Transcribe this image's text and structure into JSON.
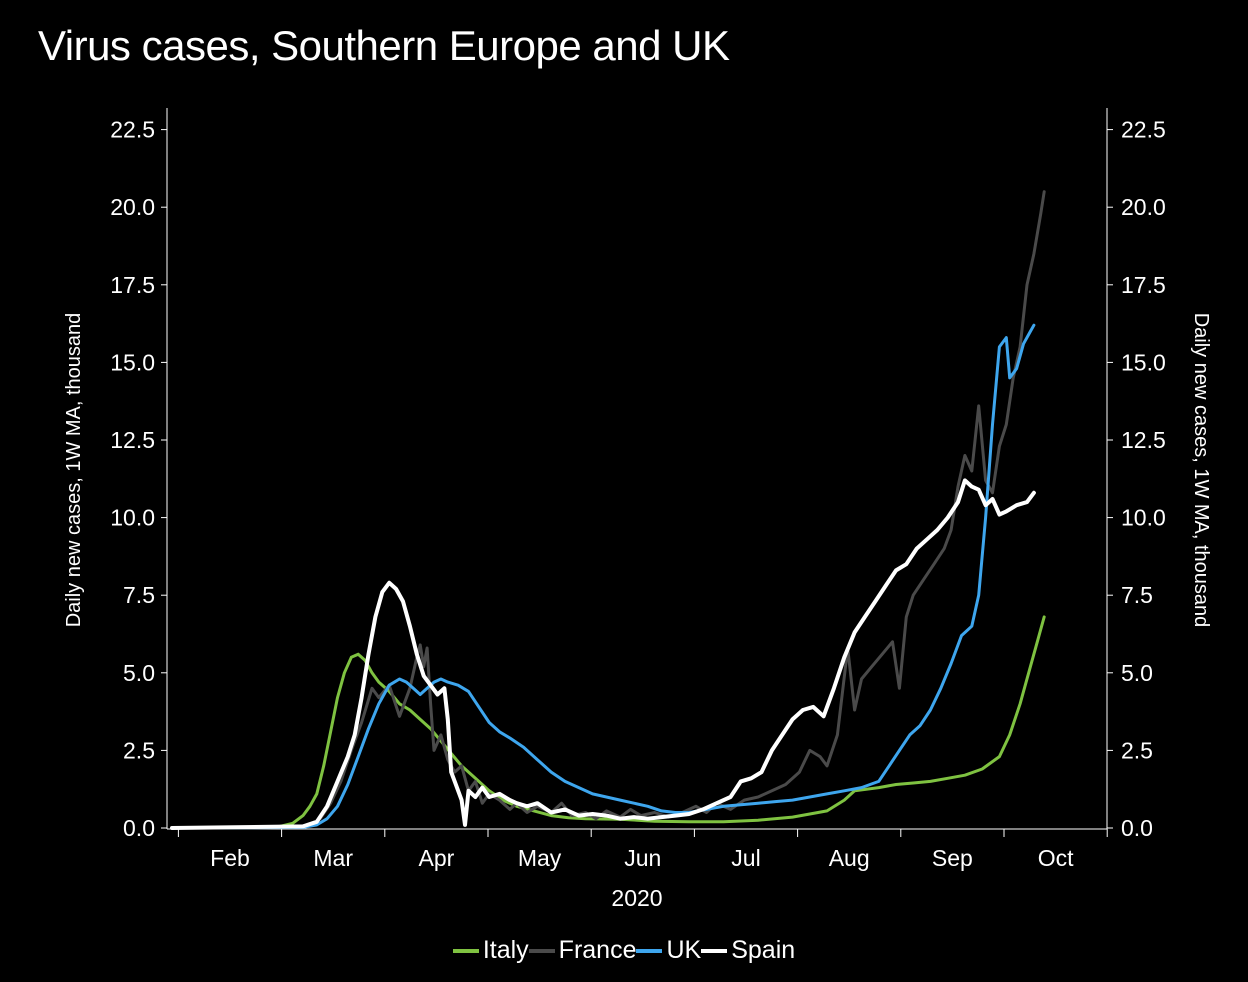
{
  "title": "Virus cases, Southern Europe and UK",
  "chart_data": {
    "type": "line",
    "title": "Virus cases, Southern Europe and UK",
    "xlabel": "2020",
    "ylabel_left": "Daily new cases, 1W MA, thousand",
    "ylabel_right": "Daily new cases, 1W MA, thousand",
    "x_ticks": [
      "Feb",
      "Mar",
      "Apr",
      "May",
      "Jun",
      "Jul",
      "Aug",
      "Sep",
      "Oct"
    ],
    "y_ticks": [
      "0.0",
      "2.5",
      "5.0",
      "7.5",
      "10.0",
      "12.5",
      "15.0",
      "17.5",
      "20.0",
      "22.5"
    ],
    "ylim": [
      0,
      22.5
    ],
    "x_unit": "days since 2020-01-20",
    "xlim": [
      0,
      257
    ],
    "legend_position": "bottom",
    "grid": false,
    "series": [
      {
        "name": "Italy",
        "color": "#7fc241",
        "points": [
          [
            0,
            0
          ],
          [
            30,
            0.02
          ],
          [
            35,
            0.15
          ],
          [
            38,
            0.4
          ],
          [
            40,
            0.7
          ],
          [
            42,
            1.1
          ],
          [
            44,
            2.0
          ],
          [
            46,
            3.1
          ],
          [
            48,
            4.2
          ],
          [
            50,
            5.0
          ],
          [
            52,
            5.5
          ],
          [
            54,
            5.6
          ],
          [
            56,
            5.4
          ],
          [
            58,
            5.0
          ],
          [
            60,
            4.7
          ],
          [
            63,
            4.4
          ],
          [
            66,
            4.0
          ],
          [
            69,
            3.8
          ],
          [
            72,
            3.5
          ],
          [
            75,
            3.2
          ],
          [
            78,
            2.8
          ],
          [
            81,
            2.4
          ],
          [
            84,
            2.0
          ],
          [
            88,
            1.6
          ],
          [
            92,
            1.2
          ],
          [
            96,
            0.9
          ],
          [
            100,
            0.7
          ],
          [
            105,
            0.55
          ],
          [
            110,
            0.4
          ],
          [
            115,
            0.33
          ],
          [
            120,
            0.3
          ],
          [
            130,
            0.28
          ],
          [
            140,
            0.22
          ],
          [
            150,
            0.2
          ],
          [
            160,
            0.2
          ],
          [
            170,
            0.25
          ],
          [
            180,
            0.35
          ],
          [
            185,
            0.45
          ],
          [
            190,
            0.55
          ],
          [
            195,
            0.9
          ],
          [
            198,
            1.2
          ],
          [
            205,
            1.3
          ],
          [
            210,
            1.4
          ],
          [
            215,
            1.45
          ],
          [
            220,
            1.5
          ],
          [
            225,
            1.6
          ],
          [
            230,
            1.7
          ],
          [
            235,
            1.9
          ],
          [
            240,
            2.3
          ],
          [
            243,
            3.0
          ],
          [
            246,
            4.0
          ],
          [
            249,
            5.2
          ],
          [
            251,
            6.0
          ],
          [
            253,
            6.8
          ]
        ]
      },
      {
        "name": "France",
        "color": "#4a4a4a",
        "points": [
          [
            0,
            0
          ],
          [
            35,
            0.02
          ],
          [
            40,
            0.1
          ],
          [
            43,
            0.3
          ],
          [
            46,
            0.8
          ],
          [
            49,
            1.5
          ],
          [
            52,
            2.5
          ],
          [
            55,
            3.4
          ],
          [
            58,
            4.5
          ],
          [
            60,
            4.2
          ],
          [
            63,
            4.6
          ],
          [
            66,
            3.6
          ],
          [
            69,
            4.5
          ],
          [
            71,
            5.5
          ],
          [
            72,
            5.9
          ],
          [
            73,
            5.2
          ],
          [
            74,
            5.8
          ],
          [
            75,
            4.0
          ],
          [
            76,
            2.5
          ],
          [
            78,
            3.0
          ],
          [
            80,
            2.2
          ],
          [
            82,
            1.8
          ],
          [
            84,
            2.0
          ],
          [
            86,
            1.2
          ],
          [
            88,
            1.5
          ],
          [
            90,
            0.8
          ],
          [
            92,
            1.1
          ],
          [
            95,
            0.9
          ],
          [
            98,
            0.6
          ],
          [
            100,
            0.8
          ],
          [
            103,
            0.5
          ],
          [
            106,
            0.7
          ],
          [
            110,
            0.5
          ],
          [
            113,
            0.8
          ],
          [
            116,
            0.4
          ],
          [
            120,
            0.5
          ],
          [
            123,
            0.3
          ],
          [
            126,
            0.55
          ],
          [
            130,
            0.35
          ],
          [
            133,
            0.6
          ],
          [
            136,
            0.4
          ],
          [
            140,
            0.5
          ],
          [
            144,
            0.35
          ],
          [
            148,
            0.5
          ],
          [
            152,
            0.7
          ],
          [
            155,
            0.5
          ],
          [
            158,
            0.8
          ],
          [
            162,
            0.6
          ],
          [
            166,
            0.9
          ],
          [
            170,
            1.0
          ],
          [
            174,
            1.2
          ],
          [
            178,
            1.4
          ],
          [
            182,
            1.8
          ],
          [
            185,
            2.5
          ],
          [
            188,
            2.3
          ],
          [
            190,
            2.0
          ],
          [
            193,
            3.0
          ],
          [
            196,
            5.8
          ],
          [
            198,
            3.8
          ],
          [
            200,
            4.8
          ],
          [
            203,
            5.2
          ],
          [
            206,
            5.6
          ],
          [
            209,
            6.0
          ],
          [
            211,
            4.5
          ],
          [
            213,
            6.8
          ],
          [
            215,
            7.5
          ],
          [
            218,
            8.0
          ],
          [
            221,
            8.5
          ],
          [
            224,
            9.0
          ],
          [
            226,
            9.6
          ],
          [
            228,
            11.0
          ],
          [
            230,
            12.0
          ],
          [
            232,
            11.5
          ],
          [
            234,
            13.6
          ],
          [
            236,
            11.2
          ],
          [
            238,
            10.8
          ],
          [
            240,
            12.3
          ],
          [
            242,
            13.0
          ],
          [
            244,
            14.5
          ],
          [
            246,
            15.5
          ],
          [
            248,
            17.5
          ],
          [
            250,
            18.5
          ],
          [
            252,
            19.8
          ],
          [
            253,
            20.5
          ]
        ]
      },
      {
        "name": "UK",
        "color": "#3ea6ee",
        "points": [
          [
            0,
            0
          ],
          [
            38,
            0.02
          ],
          [
            42,
            0.1
          ],
          [
            45,
            0.3
          ],
          [
            48,
            0.7
          ],
          [
            51,
            1.4
          ],
          [
            54,
            2.3
          ],
          [
            57,
            3.2
          ],
          [
            60,
            4.0
          ],
          [
            63,
            4.6
          ],
          [
            66,
            4.8
          ],
          [
            68,
            4.7
          ],
          [
            70,
            4.5
          ],
          [
            72,
            4.3
          ],
          [
            74,
            4.5
          ],
          [
            76,
            4.7
          ],
          [
            78,
            4.8
          ],
          [
            80,
            4.7
          ],
          [
            83,
            4.6
          ],
          [
            86,
            4.4
          ],
          [
            89,
            3.9
          ],
          [
            92,
            3.4
          ],
          [
            95,
            3.1
          ],
          [
            98,
            2.9
          ],
          [
            102,
            2.6
          ],
          [
            106,
            2.2
          ],
          [
            110,
            1.8
          ],
          [
            114,
            1.5
          ],
          [
            118,
            1.3
          ],
          [
            122,
            1.1
          ],
          [
            126,
            1.0
          ],
          [
            130,
            0.9
          ],
          [
            134,
            0.8
          ],
          [
            138,
            0.7
          ],
          [
            142,
            0.55
          ],
          [
            146,
            0.5
          ],
          [
            150,
            0.5
          ],
          [
            155,
            0.6
          ],
          [
            160,
            0.7
          ],
          [
            165,
            0.75
          ],
          [
            170,
            0.8
          ],
          [
            175,
            0.85
          ],
          [
            180,
            0.9
          ],
          [
            185,
            1.0
          ],
          [
            190,
            1.1
          ],
          [
            195,
            1.2
          ],
          [
            200,
            1.3
          ],
          [
            205,
            1.5
          ],
          [
            208,
            2.0
          ],
          [
            211,
            2.5
          ],
          [
            214,
            3.0
          ],
          [
            217,
            3.3
          ],
          [
            220,
            3.8
          ],
          [
            223,
            4.5
          ],
          [
            226,
            5.3
          ],
          [
            229,
            6.2
          ],
          [
            232,
            6.5
          ],
          [
            234,
            7.5
          ],
          [
            236,
            10.0
          ],
          [
            238,
            13.0
          ],
          [
            240,
            15.5
          ],
          [
            242,
            15.8
          ],
          [
            243,
            14.5
          ],
          [
            245,
            14.8
          ],
          [
            247,
            15.6
          ],
          [
            249,
            16.0
          ],
          [
            250,
            16.2
          ]
        ]
      },
      {
        "name": "Spain",
        "color": "#ffffff",
        "points": [
          [
            0,
            0
          ],
          [
            38,
            0.05
          ],
          [
            42,
            0.2
          ],
          [
            45,
            0.7
          ],
          [
            48,
            1.5
          ],
          [
            51,
            2.3
          ],
          [
            53,
            3.0
          ],
          [
            55,
            4.2
          ],
          [
            57,
            5.6
          ],
          [
            59,
            6.8
          ],
          [
            61,
            7.6
          ],
          [
            63,
            7.9
          ],
          [
            65,
            7.7
          ],
          [
            67,
            7.3
          ],
          [
            69,
            6.5
          ],
          [
            71,
            5.6
          ],
          [
            73,
            4.9
          ],
          [
            75,
            4.6
          ],
          [
            77,
            4.3
          ],
          [
            79,
            4.5
          ],
          [
            80,
            3.5
          ],
          [
            81,
            1.8
          ],
          [
            82,
            1.5
          ],
          [
            84,
            0.9
          ],
          [
            85,
            0.1
          ],
          [
            86,
            1.2
          ],
          [
            88,
            1.0
          ],
          [
            90,
            1.3
          ],
          [
            92,
            1.0
          ],
          [
            95,
            1.1
          ],
          [
            98,
            0.9
          ],
          [
            100,
            0.8
          ],
          [
            103,
            0.7
          ],
          [
            106,
            0.8
          ],
          [
            110,
            0.5
          ],
          [
            114,
            0.6
          ],
          [
            118,
            0.4
          ],
          [
            122,
            0.45
          ],
          [
            126,
            0.4
          ],
          [
            130,
            0.3
          ],
          [
            134,
            0.35
          ],
          [
            138,
            0.3
          ],
          [
            142,
            0.35
          ],
          [
            146,
            0.4
          ],
          [
            150,
            0.45
          ],
          [
            154,
            0.6
          ],
          [
            158,
            0.8
          ],
          [
            162,
            1.0
          ],
          [
            165,
            1.5
          ],
          [
            168,
            1.6
          ],
          [
            171,
            1.8
          ],
          [
            174,
            2.5
          ],
          [
            177,
            3.0
          ],
          [
            180,
            3.5
          ],
          [
            183,
            3.8
          ],
          [
            186,
            3.9
          ],
          [
            189,
            3.6
          ],
          [
            192,
            4.5
          ],
          [
            195,
            5.5
          ],
          [
            198,
            6.3
          ],
          [
            201,
            6.8
          ],
          [
            204,
            7.3
          ],
          [
            207,
            7.8
          ],
          [
            210,
            8.3
          ],
          [
            213,
            8.5
          ],
          [
            216,
            9.0
          ],
          [
            219,
            9.3
          ],
          [
            222,
            9.6
          ],
          [
            225,
            10.0
          ],
          [
            228,
            10.5
          ],
          [
            230,
            11.2
          ],
          [
            232,
            11.0
          ],
          [
            234,
            10.9
          ],
          [
            236,
            10.4
          ],
          [
            238,
            10.6
          ],
          [
            240,
            10.1
          ],
          [
            242,
            10.2
          ],
          [
            245,
            10.4
          ],
          [
            248,
            10.5
          ],
          [
            250,
            10.8
          ]
        ]
      }
    ]
  }
}
